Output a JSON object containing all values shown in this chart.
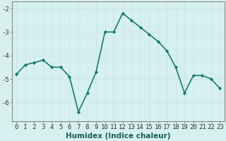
{
  "x": [
    0,
    1,
    2,
    3,
    4,
    5,
    6,
    7,
    8,
    9,
    10,
    11,
    12,
    13,
    14,
    15,
    16,
    17,
    18,
    19,
    20,
    21,
    22,
    23
  ],
  "y": [
    -4.8,
    -4.4,
    -4.3,
    -4.2,
    -4.5,
    -4.5,
    -4.9,
    -6.4,
    -5.6,
    -4.7,
    -3.0,
    -3.0,
    -2.2,
    -2.5,
    -2.8,
    -3.1,
    -3.4,
    -3.8,
    -4.5,
    -5.6,
    -4.85,
    -4.85,
    -5.0,
    -5.4
  ],
  "line_color": "#1a7a6e",
  "marker": "D",
  "marker_size": 2.2,
  "bg_color": "#d6f0ef",
  "grid_color": "#c8e8e4",
  "xlabel": "Humidex (Indice chaleur)",
  "xlabel_fontsize": 7.5,
  "ylim": [
    -6.8,
    -1.7
  ],
  "xlim": [
    -0.5,
    23.5
  ],
  "yticks": [
    -6,
    -5,
    -4,
    -3,
    -2
  ],
  "xticks": [
    0,
    1,
    2,
    3,
    4,
    5,
    6,
    7,
    8,
    9,
    10,
    11,
    12,
    13,
    14,
    15,
    16,
    17,
    18,
    19,
    20,
    21,
    22,
    23
  ],
  "tick_fontsize": 6.5,
  "line_width": 1.2,
  "spine_color": "#888888",
  "title_color": "#1a7a6e"
}
